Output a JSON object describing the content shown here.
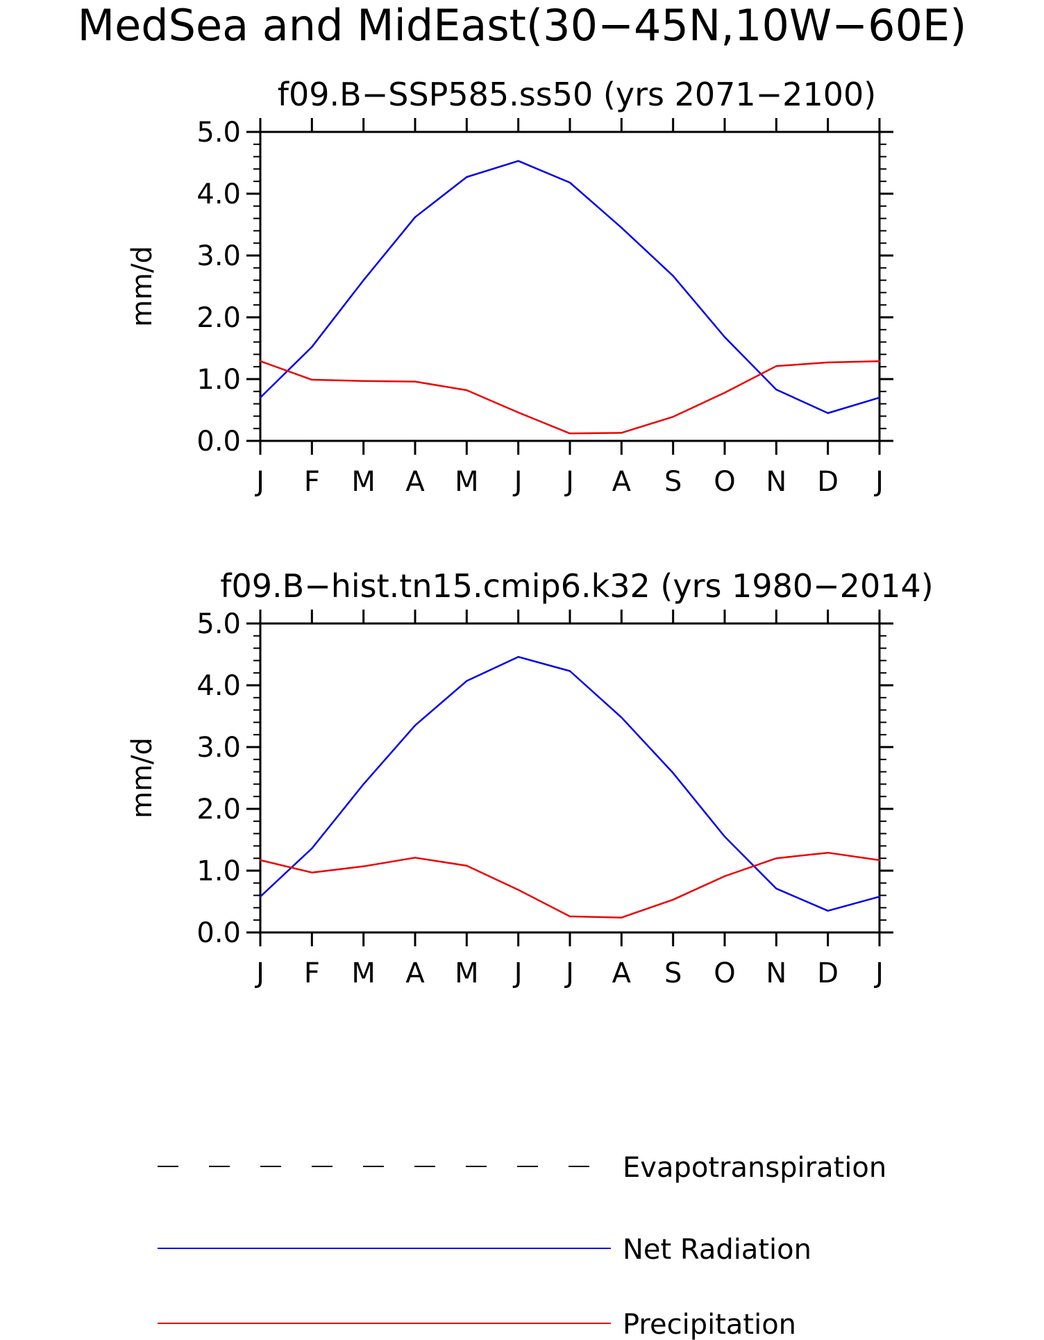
{
  "figure_title": "MedSea and MidEast(30−45N,10W−60E)",
  "colors": {
    "Evapotranspiration": "#000000",
    "Net Radiation": "#0000ee",
    "Precipitation": "#ee0000"
  },
  "legend": [
    {
      "name": "Evapotranspiration",
      "style": "dashed"
    },
    {
      "name": "Net Radiation",
      "style": "solid"
    },
    {
      "name": "Precipitation",
      "style": "solid"
    }
  ],
  "chart_data": [
    {
      "type": "line",
      "title": "f09.B−SSP585.ss50 (yrs 2071−2100)",
      "xlabel": "",
      "ylabel": "mm/d",
      "categories": [
        "J",
        "F",
        "M",
        "A",
        "M",
        "J",
        "J",
        "A",
        "S",
        "O",
        "N",
        "D",
        "J"
      ],
      "ylim": [
        0,
        5
      ],
      "yticks": [
        "0.0",
        "1.0",
        "2.0",
        "3.0",
        "4.0",
        "5.0"
      ],
      "series": [
        {
          "name": "Net Radiation",
          "values": [
            0.7,
            1.52,
            2.6,
            3.62,
            4.27,
            4.53,
            4.18,
            3.45,
            2.67,
            1.68,
            0.83,
            0.45,
            0.7
          ]
        },
        {
          "name": "Precipitation",
          "values": [
            1.29,
            0.99,
            0.97,
            0.96,
            0.82,
            0.46,
            0.12,
            0.13,
            0.39,
            0.78,
            1.21,
            1.27,
            1.29
          ]
        }
      ]
    },
    {
      "type": "line",
      "title": "f09.B−hist.tn15.cmip6.k32 (yrs 1980−2014)",
      "xlabel": "",
      "ylabel": "mm/d",
      "categories": [
        "J",
        "F",
        "M",
        "A",
        "M",
        "J",
        "J",
        "A",
        "S",
        "O",
        "N",
        "D",
        "J"
      ],
      "ylim": [
        0,
        5
      ],
      "yticks": [
        "0.0",
        "1.0",
        "2.0",
        "3.0",
        "4.0",
        "5.0"
      ],
      "series": [
        {
          "name": "Net Radiation",
          "values": [
            0.58,
            1.36,
            2.4,
            3.35,
            4.07,
            4.46,
            4.23,
            3.48,
            2.58,
            1.55,
            0.71,
            0.35,
            0.58
          ]
        },
        {
          "name": "Precipitation",
          "values": [
            1.17,
            0.97,
            1.07,
            1.21,
            1.08,
            0.69,
            0.26,
            0.24,
            0.53,
            0.91,
            1.2,
            1.29,
            1.17
          ]
        }
      ]
    }
  ]
}
